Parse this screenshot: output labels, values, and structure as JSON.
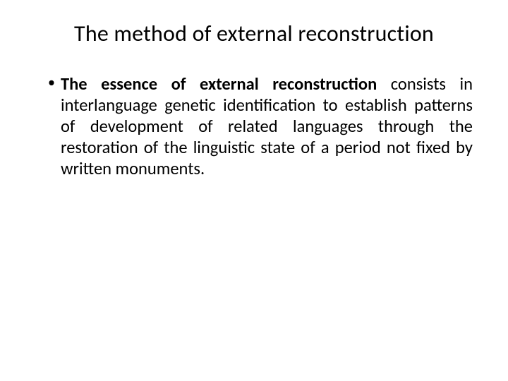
{
  "slide": {
    "title": "The method of external reconstruction",
    "bullet": {
      "bold_lead": "The essence of external reconstruction",
      "rest": " consists in interlanguage genetic identification to establish patterns of development of related languages through the restoration of the linguistic state of a period not fixed by written monuments."
    }
  },
  "style": {
    "background_color": "#ffffff",
    "text_color": "#000000",
    "title_fontsize": 32,
    "title_fontweight": 400,
    "body_fontsize": 24.5,
    "body_lineheight": 1.22,
    "font_family": "Calibri, 'Segoe UI', Arial, sans-serif",
    "text_align_body": "justify",
    "bullet_char": "•"
  }
}
